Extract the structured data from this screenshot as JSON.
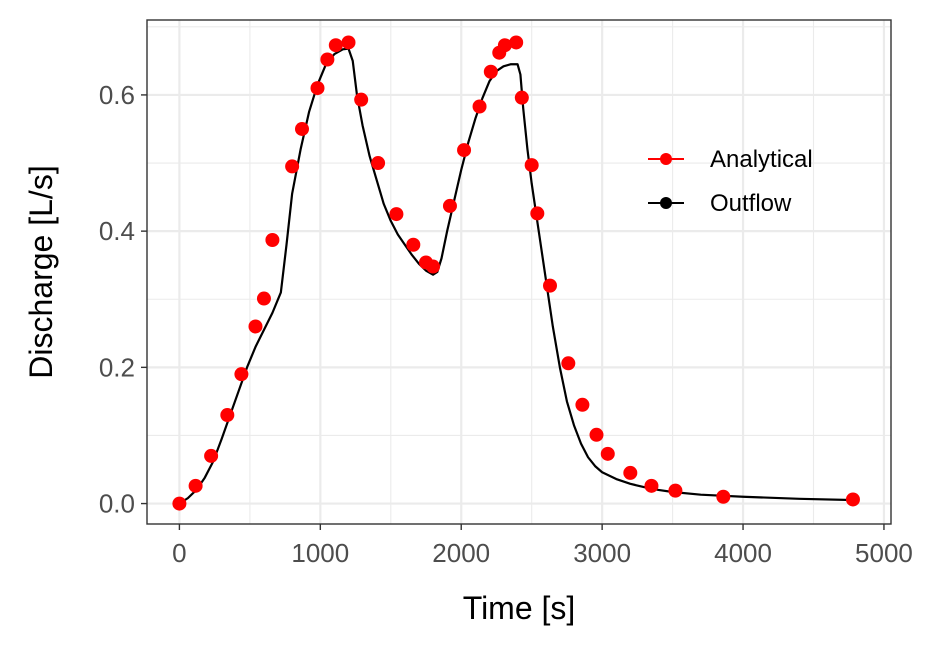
{
  "chart_data": {
    "type": "line",
    "xlabel": "Time [s]",
    "ylabel": "Discharge [L/s]",
    "xlim": [
      -230,
      5050
    ],
    "ylim": [
      -0.03,
      0.71
    ],
    "x_ticks": [
      "0",
      "1000",
      "2000",
      "3000",
      "4000",
      "5000"
    ],
    "y_ticks": [
      "0.0",
      "0.2",
      "0.4",
      "0.6"
    ],
    "grid": true,
    "legend_position": "right",
    "series": [
      {
        "name": "Analytical",
        "kind": "points",
        "color": "#ff0000",
        "x": [
          0,
          115,
          225,
          340,
          440,
          540,
          600,
          660,
          800,
          870,
          980,
          1050,
          1110,
          1200,
          1290,
          1410,
          1540,
          1660,
          1750,
          1800,
          1920,
          2020,
          2130,
          2210,
          2270,
          2310,
          2390,
          2430,
          2500,
          2540,
          2630,
          2760,
          2860,
          2960,
          3040,
          3200,
          3350,
          3520,
          3860,
          4780
        ],
        "y": [
          0.0,
          0.026,
          0.07,
          0.13,
          0.19,
          0.26,
          0.301,
          0.387,
          0.495,
          0.55,
          0.61,
          0.652,
          0.673,
          0.677,
          0.593,
          0.5,
          0.425,
          0.38,
          0.354,
          0.348,
          0.437,
          0.519,
          0.583,
          0.634,
          0.662,
          0.673,
          0.677,
          0.596,
          0.497,
          0.426,
          0.32,
          0.206,
          0.145,
          0.101,
          0.073,
          0.045,
          0.026,
          0.019,
          0.01,
          0.006
        ]
      },
      {
        "name": "Outflow",
        "kind": "line",
        "color": "#000000",
        "x": [
          0,
          60,
          120,
          180,
          240,
          300,
          360,
          420,
          480,
          540,
          600,
          660,
          720,
          760,
          800,
          860,
          920,
          980,
          1040,
          1100,
          1160,
          1200,
          1230,
          1260,
          1300,
          1350,
          1400,
          1450,
          1500,
          1550,
          1600,
          1650,
          1700,
          1750,
          1800,
          1830,
          1860,
          1900,
          1950,
          2000,
          2050,
          2100,
          2150,
          2200,
          2250,
          2300,
          2350,
          2400,
          2420,
          2440,
          2470,
          2500,
          2550,
          2600,
          2650,
          2700,
          2750,
          2800,
          2850,
          2900,
          2950,
          3000,
          3100,
          3200,
          3300,
          3400,
          3500,
          3700,
          4000,
          4400,
          4800
        ],
        "y": [
          0.0,
          0.008,
          0.02,
          0.038,
          0.062,
          0.095,
          0.13,
          0.165,
          0.2,
          0.23,
          0.255,
          0.28,
          0.31,
          0.38,
          0.455,
          0.52,
          0.575,
          0.615,
          0.645,
          0.66,
          0.667,
          0.668,
          0.65,
          0.6,
          0.555,
          0.51,
          0.475,
          0.44,
          0.415,
          0.395,
          0.38,
          0.365,
          0.352,
          0.342,
          0.336,
          0.34,
          0.36,
          0.4,
          0.445,
          0.49,
          0.53,
          0.565,
          0.595,
          0.62,
          0.635,
          0.642,
          0.645,
          0.645,
          0.63,
          0.58,
          0.52,
          0.47,
          0.4,
          0.33,
          0.26,
          0.2,
          0.15,
          0.115,
          0.088,
          0.068,
          0.055,
          0.046,
          0.036,
          0.029,
          0.024,
          0.02,
          0.017,
          0.013,
          0.01,
          0.007,
          0.005
        ]
      }
    ]
  }
}
